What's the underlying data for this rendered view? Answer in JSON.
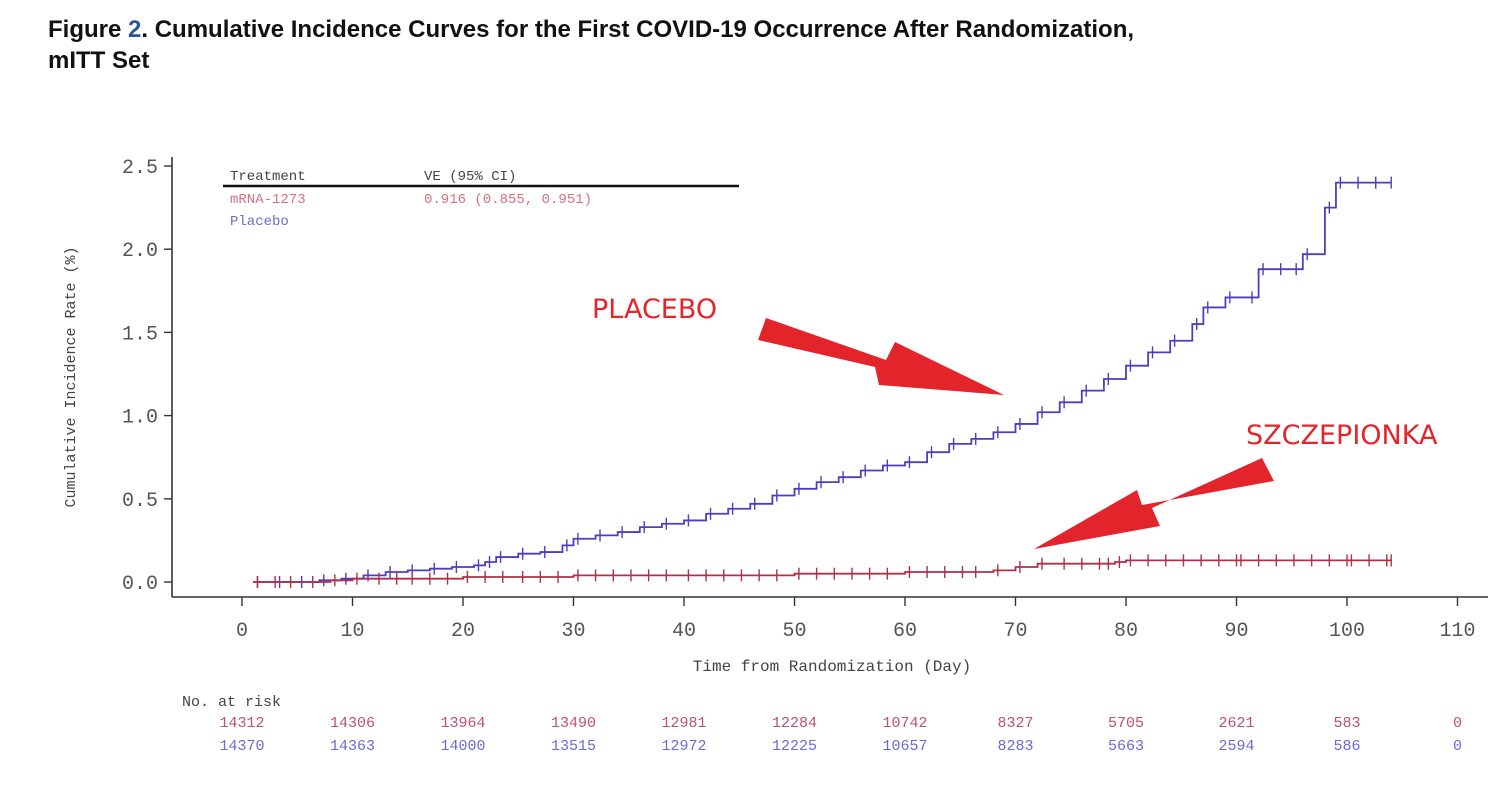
{
  "figure": {
    "label_prefix": "Figure ",
    "number": "2",
    "title_line1": ". Cumulative Incidence Curves for the First COVID-19 Occurrence After Randomization,",
    "title_line2": "mITT Set"
  },
  "chart_data": {
    "type": "line",
    "step": true,
    "title": "Cumulative Incidence Curves for the First COVID-19 Occurrence After Randomization, mITT Set",
    "xlabel": "Time from Randomization (Day)",
    "ylabel": "Cumulative Incidence Rate (%)",
    "xlim": [
      -5,
      110
    ],
    "ylim": [
      -0.1,
      2.55
    ],
    "xticks": [
      0,
      10,
      20,
      30,
      40,
      50,
      60,
      70,
      80,
      90,
      100,
      110
    ],
    "xtick_labels": [
      "0",
      "10",
      "20",
      "30",
      "40",
      "50",
      "60",
      "70",
      "80",
      "90",
      "100",
      "110"
    ],
    "yticks": [
      0.0,
      0.5,
      1.0,
      1.5,
      2.0,
      2.5
    ],
    "ytick_labels": [
      "0.0",
      "0.5",
      "1.0",
      "1.5",
      "2.0",
      "2.5"
    ],
    "grid": false,
    "legend": {
      "position": "top-left",
      "header_treatment": "Treatment",
      "header_ve": "VE (95% CI)",
      "rows": [
        {
          "treatment": "mRNA-1273",
          "ve": "0.916 (0.855, 0.951)",
          "color": "#d9707c"
        },
        {
          "treatment": "Placebo",
          "ve": "",
          "color": "#6a6ad8"
        }
      ]
    },
    "series": [
      {
        "name": "Placebo",
        "color": "#4c3fbf",
        "x": [
          1,
          3,
          5,
          7,
          9,
          11,
          13,
          15,
          17,
          19,
          21,
          22,
          23,
          25,
          27,
          29,
          30,
          32,
          34,
          36,
          38,
          40,
          42,
          44,
          46,
          48,
          50,
          52,
          54,
          56,
          58,
          60,
          62,
          64,
          66,
          68,
          70,
          72,
          74,
          76,
          78,
          80,
          82,
          84,
          86,
          87,
          89,
          91,
          92,
          95,
          96,
          98,
          99,
          104
        ],
        "y": [
          0.0,
          0.0,
          0.0,
          0.01,
          0.02,
          0.04,
          0.06,
          0.07,
          0.08,
          0.09,
          0.1,
          0.12,
          0.15,
          0.17,
          0.18,
          0.22,
          0.26,
          0.28,
          0.3,
          0.33,
          0.35,
          0.37,
          0.41,
          0.44,
          0.47,
          0.52,
          0.56,
          0.6,
          0.63,
          0.67,
          0.7,
          0.72,
          0.78,
          0.83,
          0.86,
          0.9,
          0.95,
          1.02,
          1.08,
          1.15,
          1.22,
          1.3,
          1.38,
          1.45,
          1.55,
          1.65,
          1.71,
          1.71,
          1.88,
          1.88,
          1.97,
          2.25,
          2.4,
          2.4
        ]
      },
      {
        "name": "mRNA-1273",
        "color": "#b0304a",
        "x": [
          1,
          4,
          6,
          8,
          10,
          12,
          15,
          20,
          25,
          30,
          40,
          50,
          60,
          66,
          68,
          70,
          72,
          74,
          78,
          79,
          80,
          90,
          100,
          104
        ],
        "y": [
          0.0,
          0.0,
          0.0,
          0.01,
          0.02,
          0.02,
          0.02,
          0.03,
          0.03,
          0.04,
          0.04,
          0.05,
          0.06,
          0.06,
          0.07,
          0.09,
          0.11,
          0.11,
          0.11,
          0.12,
          0.13,
          0.13,
          0.13,
          0.13
        ]
      }
    ],
    "annotations": [
      {
        "text": "PLACEBO",
        "points_to": "Placebo curve near day 70",
        "color": "#e3242b"
      },
      {
        "text": "SZCZEPIONKA",
        "points_to": "mRNA-1273 curve near day 72",
        "color": "#e3242b"
      }
    ],
    "at_risk": {
      "header": "No. at risk",
      "rows": [
        {
          "name": "mRNA-1273",
          "color": "#c05070",
          "values": [
            "14312",
            "14306",
            "13964",
            "13490",
            "12981",
            "12284",
            "10742",
            "8327",
            "5705",
            "2621",
            "583",
            "0"
          ]
        },
        {
          "name": "Placebo",
          "color": "#6a6ad8",
          "values": [
            "14370",
            "14363",
            "14000",
            "13515",
            "12972",
            "12225",
            "10657",
            "8283",
            "5663",
            "2594",
            "586",
            "0"
          ]
        }
      ]
    }
  }
}
